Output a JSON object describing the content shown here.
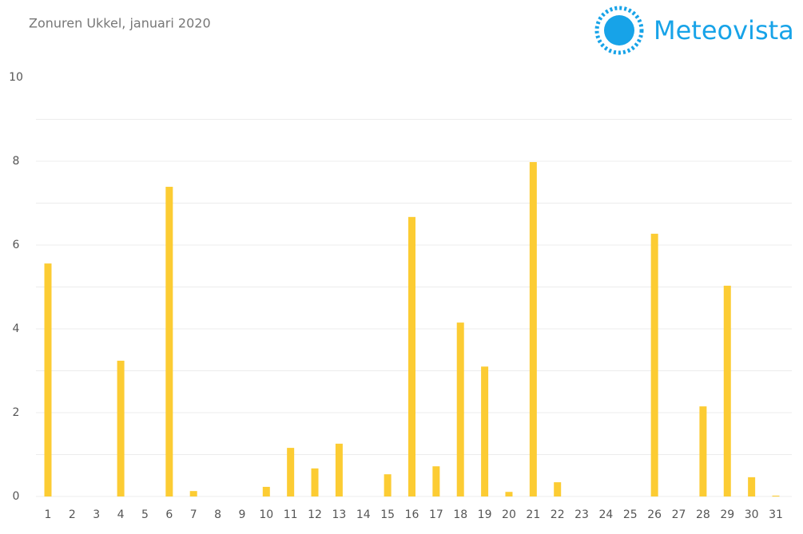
{
  "chart_data": {
    "type": "bar",
    "title": "Zonuren Ukkel, januari 2020",
    "categories": [
      "1",
      "2",
      "3",
      "4",
      "5",
      "6",
      "7",
      "8",
      "9",
      "10",
      "11",
      "12",
      "13",
      "14",
      "15",
      "16",
      "17",
      "18",
      "19",
      "20",
      "21",
      "22",
      "23",
      "24",
      "25",
      "26",
      "27",
      "28",
      "29",
      "30",
      "31"
    ],
    "values": [
      5.56,
      0,
      0,
      3.24,
      0,
      7.39,
      0.13,
      0,
      0,
      0.23,
      1.16,
      0.67,
      1.26,
      0,
      0.53,
      6.67,
      0.72,
      4.15,
      3.1,
      0.11,
      7.98,
      0.34,
      0,
      0,
      0,
      6.27,
      0,
      2.15,
      5.03,
      0.46,
      0.02
    ],
    "color": "#fccc33",
    "ylim": [
      0,
      10
    ],
    "yticks": [
      0,
      2,
      4,
      6,
      8,
      10
    ],
    "grid": true
  },
  "brand": "Meteovista"
}
